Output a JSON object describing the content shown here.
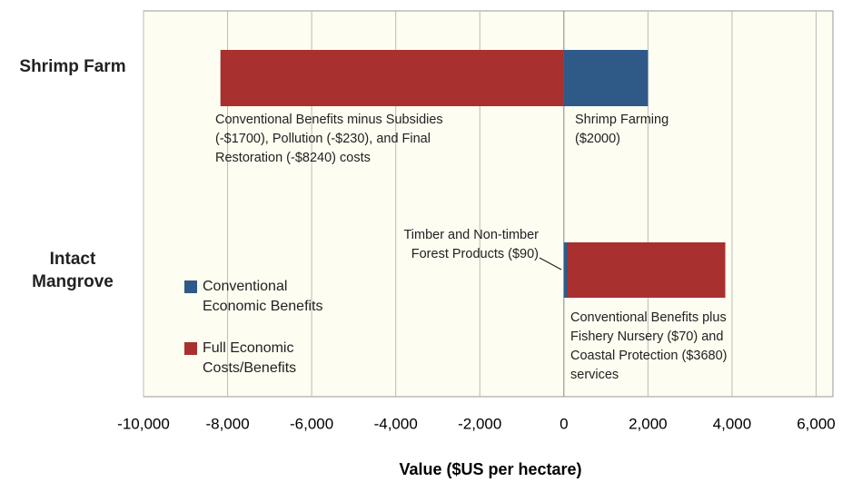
{
  "chart_data": {
    "type": "bar",
    "orientation": "horizontal",
    "x_label": "Value ($US per hectare)",
    "categories": [
      "Shrimp Farm",
      "Intact Mangrove"
    ],
    "series": [
      {
        "name": "Full Economic Costs/Benefits",
        "color": "#a8302f",
        "values": [
          -8170,
          3840
        ]
      },
      {
        "name": "Conventional Economic Benefits",
        "color": "#2f5a88",
        "values": [
          2000,
          90
        ]
      }
    ],
    "xlim": [
      -10000,
      6400
    ],
    "xticks": [
      {
        "value": -10000,
        "label": "-10,000"
      },
      {
        "value": -8000,
        "label": "-8,000"
      },
      {
        "value": -6000,
        "label": "-6,000"
      },
      {
        "value": -4000,
        "label": "-4,000"
      },
      {
        "value": -2000,
        "label": "-2,000"
      },
      0,
      {
        "value": 2000,
        "label": "2,000"
      },
      {
        "value": 4000,
        "label": "4,000"
      },
      {
        "value": 6000,
        "label": "6,000"
      }
    ],
    "grid": true,
    "legend": "lower left",
    "annotations": [
      {
        "lines": [
          "Conventional Benefits minus Subsidies",
          "(-$1700), Pollution (-$230), and Final",
          "Restoration (-$8240) costs"
        ]
      },
      {
        "lines": [
          "Shrimp Farming",
          "($2000)"
        ]
      },
      {
        "lines": [
          "Timber and Non-timber",
          "Forest Products ($90)"
        ]
      },
      {
        "lines": [
          "Conventional Benefits plus",
          "Fishery Nursery ($70) and",
          "Coastal Protection ($3680)",
          "services"
        ]
      }
    ]
  }
}
